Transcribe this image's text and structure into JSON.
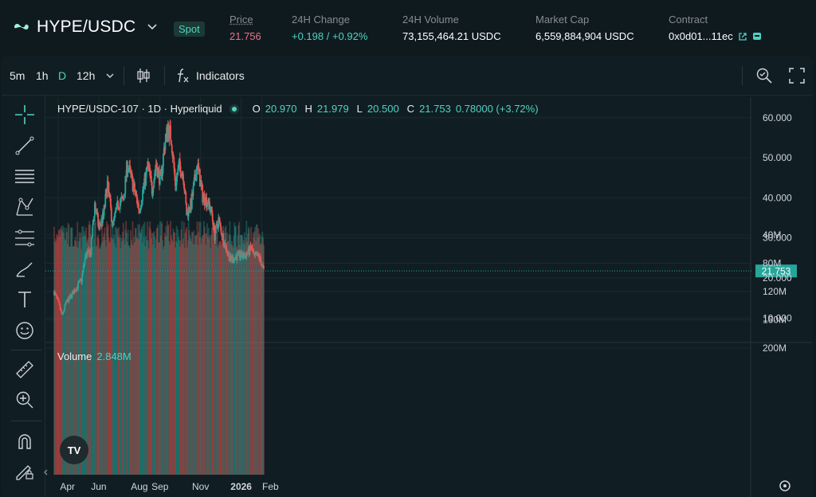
{
  "header": {
    "pair": "HYPE/USDC",
    "market_badge": "Spot",
    "stats": [
      {
        "label": "Price",
        "value": "21.756",
        "color": "#ed7088"
      },
      {
        "label": "24H Change",
        "value": "+0.198 / +0.92%",
        "color": "#50d2c1"
      },
      {
        "label": "24H Volume",
        "value": "73,155,464.21 USDC",
        "color": "#ffffff"
      },
      {
        "label": "Market Cap",
        "value": "6,559,884,904 USDC",
        "color": "#ffffff"
      },
      {
        "label": "Contract",
        "value": "0x0d01...11ec",
        "color": "#ffffff"
      }
    ]
  },
  "toolbar": {
    "intervals": [
      "5m",
      "1h",
      "D",
      "12h"
    ],
    "active_interval": "D",
    "indicators_label": "Indicators"
  },
  "chart_data": {
    "type": "candlestick",
    "symbol_label": "HYPE/USDC-107 · 1D · Hyperliquid",
    "ohlc_label": {
      "o": "20.970",
      "h": "21.979",
      "l": "20.500",
      "c": "21.753",
      "change": "0.78000 (+3.72%)"
    },
    "last_price_label": "21.753",
    "last_price": 21.753,
    "y_axis": {
      "ticks": [
        "60.000",
        "50.000",
        "40.000",
        "30.000",
        "20.000",
        "10.000"
      ],
      "tick_values": [
        60,
        50,
        40,
        30,
        20,
        10
      ],
      "ylim": [
        5,
        64
      ]
    },
    "x_axis": {
      "ticks": [
        "Apr",
        "Jun",
        "Aug",
        "Sep",
        "Nov",
        "2026",
        "Feb"
      ]
    },
    "volume": {
      "label": "Volume",
      "value": "2.848M",
      "ticks": [
        "200M",
        "160M",
        "120M",
        "80M",
        "40M"
      ],
      "tick_values": [
        200,
        160,
        120,
        80,
        40
      ]
    },
    "colors": {
      "up": "#26a69a",
      "down": "#ef5350"
    },
    "close_path": [
      [
        "2025-03-26",
        16.5
      ],
      [
        "2025-04-02",
        13.5
      ],
      [
        "2025-04-07",
        10.5
      ],
      [
        "2025-04-12",
        13.5
      ],
      [
        "2025-04-20",
        15.5
      ],
      [
        "2025-04-28",
        17.5
      ],
      [
        "2025-05-06",
        19.5
      ],
      [
        "2025-05-12",
        25.5
      ],
      [
        "2025-05-20",
        26.5
      ],
      [
        "2025-05-26",
        38.5
      ],
      [
        "2025-06-01",
        32.5
      ],
      [
        "2025-06-08",
        35.5
      ],
      [
        "2025-06-14",
        43.5
      ],
      [
        "2025-06-22",
        33.0
      ],
      [
        "2025-06-30",
        38.5
      ],
      [
        "2025-07-08",
        39.5
      ],
      [
        "2025-07-14",
        48.5
      ],
      [
        "2025-07-22",
        43.5
      ],
      [
        "2025-08-01",
        37.0
      ],
      [
        "2025-08-07",
        42.5
      ],
      [
        "2025-08-14",
        48.0
      ],
      [
        "2025-08-20",
        42.0
      ],
      [
        "2025-08-26",
        48.5
      ],
      [
        "2025-09-02",
        44.0
      ],
      [
        "2025-09-08",
        53.5
      ],
      [
        "2025-09-13",
        57.5
      ],
      [
        "2025-09-18",
        55.0
      ],
      [
        "2025-09-24",
        43.5
      ],
      [
        "2025-09-30",
        48.0
      ],
      [
        "2025-10-06",
        46.0
      ],
      [
        "2025-10-11",
        36.0
      ],
      [
        "2025-10-18",
        38.5
      ],
      [
        "2025-10-27",
        48.5
      ],
      [
        "2025-11-04",
        40.5
      ],
      [
        "2025-11-12",
        39.0
      ],
      [
        "2025-11-18",
        36.0
      ],
      [
        "2025-11-22",
        30.5
      ],
      [
        "2025-11-28",
        34.5
      ],
      [
        "2025-12-06",
        29.0
      ],
      [
        "2025-12-16",
        24.5
      ],
      [
        "2025-12-26",
        25.5
      ],
      [
        "2026-01-06",
        25.5
      ],
      [
        "2026-01-12",
        26.5
      ],
      [
        "2026-01-16",
        27.5
      ],
      [
        "2026-01-21",
        25.0
      ],
      [
        "2026-01-27",
        25.5
      ],
      [
        "2026-02-01",
        23.5
      ],
      [
        "2026-02-04",
        21.75
      ]
    ]
  }
}
